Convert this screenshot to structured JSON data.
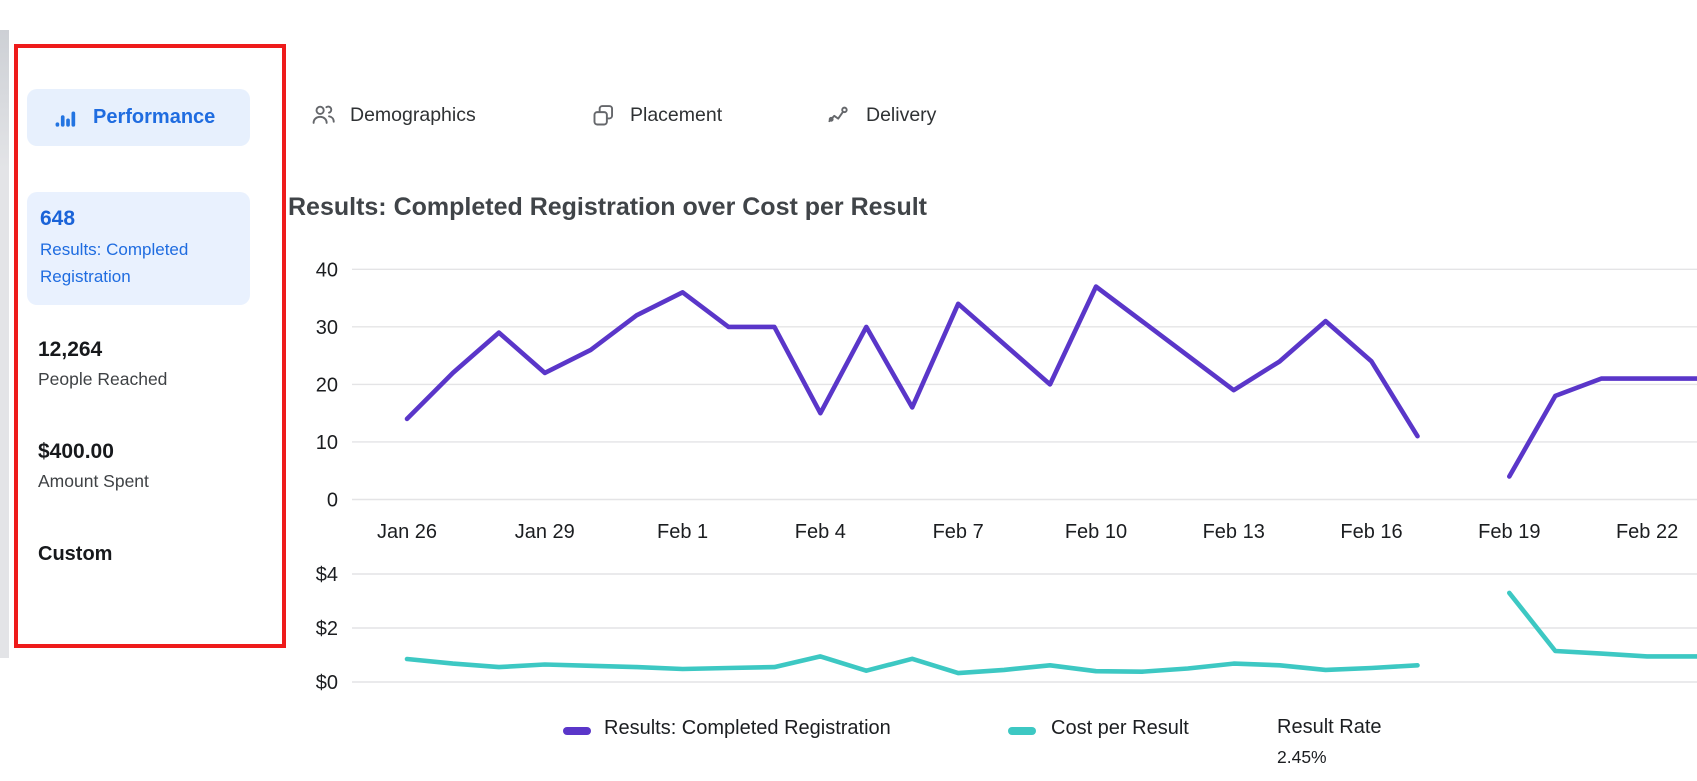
{
  "sidebar": {
    "performance_label": "Performance",
    "metrics": [
      {
        "value": "648",
        "label": "Results: Completed Registration"
      },
      {
        "value": "12,264",
        "label": "People Reached"
      },
      {
        "value": "$400.00",
        "label": "Amount Spent"
      }
    ],
    "custom_label": "Custom"
  },
  "tabs": [
    {
      "label": "Demographics"
    },
    {
      "label": "Placement"
    },
    {
      "label": "Delivery"
    }
  ],
  "chart_title": "Results: Completed Registration over Cost per Result",
  "legend": {
    "series1": "Results: Completed Registration",
    "series2": "Cost per Result",
    "result_rate_label": "Result Rate",
    "result_rate_value": "2.45%"
  },
  "colors": {
    "results_line": "#5a36c9",
    "cost_line": "#3dc8c3",
    "accent_blue": "#1f6ce0",
    "icon_blue": "#2374e1",
    "annotation_red": "#ee1b1b",
    "gridline": "#e4e4e6"
  },
  "chart_data": [
    {
      "type": "line",
      "title": "Results: Completed Registration over Cost per Result",
      "x": [
        "Jan 26",
        "Jan 27",
        "Jan 28",
        "Jan 29",
        "Jan 30",
        "Jan 31",
        "Feb 1",
        "Feb 2",
        "Feb 3",
        "Feb 4",
        "Feb 5",
        "Feb 6",
        "Feb 7",
        "Feb 8",
        "Feb 9",
        "Feb 10",
        "Feb 11",
        "Feb 12",
        "Feb 13",
        "Feb 14",
        "Feb 15",
        "Feb 16",
        "Feb 17",
        "Feb 18",
        "Feb 19",
        "Feb 20",
        "Feb 21",
        "Feb 22"
      ],
      "series": [
        {
          "name": "Results: Completed Registration",
          "color": "#5a36c9",
          "values": [
            14,
            22,
            29,
            22,
            26,
            32,
            36,
            30,
            30,
            15,
            30,
            16,
            34,
            27,
            20,
            37,
            31,
            25,
            19,
            24,
            31,
            24,
            11,
            null,
            4,
            18,
            21,
            21
          ]
        }
      ],
      "x_tick_labels": [
        "Jan 26",
        "Jan 29",
        "Feb 1",
        "Feb 4",
        "Feb 7",
        "Feb 10",
        "Feb 13",
        "Feb 16",
        "Feb 19",
        "Feb 22"
      ],
      "y_ticks": [
        0,
        10,
        20,
        30,
        40
      ],
      "y_tick_labels": [
        "0",
        "10",
        "20",
        "30",
        "40"
      ],
      "ylim": [
        0,
        43
      ],
      "grid": true,
      "legend_position": "bottom",
      "note": "data gap on Feb 18"
    },
    {
      "type": "line",
      "x": [
        "Jan 26",
        "Jan 27",
        "Jan 28",
        "Jan 29",
        "Jan 30",
        "Jan 31",
        "Feb 1",
        "Feb 2",
        "Feb 3",
        "Feb 4",
        "Feb 5",
        "Feb 6",
        "Feb 7",
        "Feb 8",
        "Feb 9",
        "Feb 10",
        "Feb 11",
        "Feb 12",
        "Feb 13",
        "Feb 14",
        "Feb 15",
        "Feb 16",
        "Feb 17",
        "Feb 18",
        "Feb 19",
        "Feb 20",
        "Feb 21",
        "Feb 22"
      ],
      "series": [
        {
          "name": "Cost per Result",
          "color": "#3dc8c3",
          "values": [
            0.85,
            0.68,
            0.55,
            0.65,
            0.6,
            0.55,
            0.48,
            0.52,
            0.55,
            0.95,
            0.42,
            0.86,
            0.33,
            0.45,
            0.62,
            0.4,
            0.38,
            0.5,
            0.68,
            0.62,
            0.45,
            0.52,
            0.62,
            null,
            3.3,
            1.15,
            1.05,
            0.95
          ]
        }
      ],
      "x_tick_labels": [],
      "y_ticks": [
        0,
        2,
        4
      ],
      "y_tick_labels": [
        "$0",
        "$2",
        "$4"
      ],
      "ylim": [
        0,
        4.6
      ],
      "grid": true,
      "note": "data gap on Feb 18"
    }
  ]
}
